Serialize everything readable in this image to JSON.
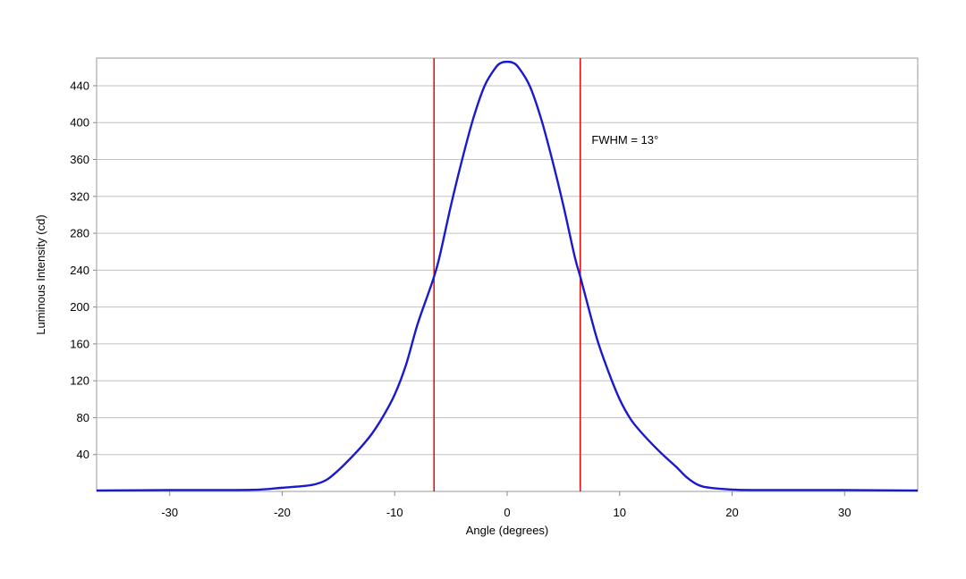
{
  "chart_data": {
    "type": "line",
    "xlabel": "Angle (degrees)",
    "ylabel": "Luminous Intensity (cd)",
    "xlim": [
      -36.5,
      36.5
    ],
    "ylim": [
      0,
      470
    ],
    "x_ticks": [
      -30,
      -20,
      -10,
      0,
      10,
      20,
      30
    ],
    "y_ticks": [
      40,
      80,
      120,
      160,
      200,
      240,
      280,
      320,
      360,
      400,
      440
    ],
    "grid": "horizontal",
    "series": [
      {
        "color": "#1a1acc",
        "x": [
          -36.5,
          -30,
          -25,
          -22,
          -20,
          -18,
          -17,
          -16,
          -15,
          -14,
          -13,
          -12,
          -11,
          -10,
          -9,
          -8,
          -7,
          -6.5,
          -6,
          -5,
          -4,
          -3,
          -2,
          -1,
          -0.5,
          0,
          0.5,
          1,
          2,
          3,
          4,
          5,
          6,
          6.5,
          7,
          8,
          9,
          10,
          11,
          12,
          13,
          14,
          15,
          16,
          17,
          18,
          20,
          22,
          25,
          30,
          36.5
        ],
        "y": [
          1,
          1.5,
          1.5,
          2,
          4,
          6,
          8,
          13,
          23,
          35,
          48,
          63,
          82,
          105,
          137,
          180,
          215,
          233,
          255,
          310,
          360,
          405,
          440,
          460,
          465,
          466,
          465,
          460,
          440,
          405,
          360,
          310,
          255,
          233,
          210,
          165,
          130,
          100,
          78,
          63,
          50,
          38,
          27,
          15,
          7,
          4,
          2,
          1.5,
          1.5,
          1.5,
          1
        ]
      }
    ],
    "vertical_lines": [
      {
        "x": -6.5,
        "color": "#e01010"
      },
      {
        "x": 6.5,
        "color": "#e01010"
      }
    ],
    "annotation": {
      "text": "FWHM = 13°",
      "x": 7.5,
      "y": 377
    }
  }
}
